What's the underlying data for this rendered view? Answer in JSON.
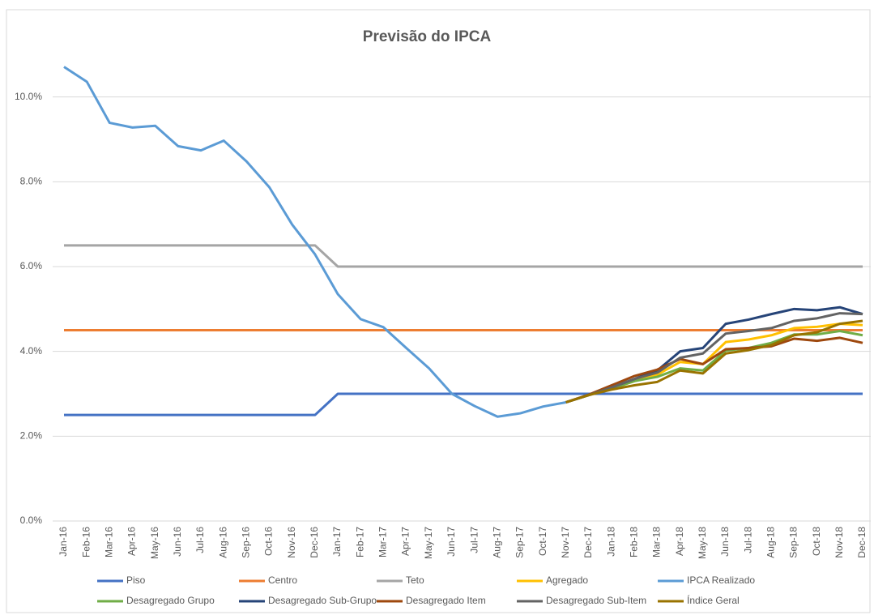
{
  "chart_data": {
    "type": "line",
    "title": "Previsão do IPCA",
    "categories": [
      "Jan-16",
      "Feb-16",
      "Mar-16",
      "Apr-16",
      "May-16",
      "Jun-16",
      "Jul-16",
      "Aug-16",
      "Sep-16",
      "Oct-16",
      "Nov-16",
      "Dec-16",
      "Jan-17",
      "Feb-17",
      "Mar-17",
      "Apr-17",
      "May-17",
      "Jun-17",
      "Jul-17",
      "Aug-17",
      "Sep-17",
      "Oct-17",
      "Nov-17",
      "Dec-17",
      "Jan-18",
      "Feb-18",
      "Mar-18",
      "Apr-18",
      "May-18",
      "Jun-18",
      "Jul-18",
      "Aug-18",
      "Sep-18",
      "Oct-18",
      "Nov-18",
      "Dec-18"
    ],
    "ylim": [
      0,
      12
    ],
    "yticks": [
      {
        "value": 0,
        "label": "0.0%"
      },
      {
        "value": 2,
        "label": "2.0%"
      },
      {
        "value": 4,
        "label": "4.0%"
      },
      {
        "value": 6,
        "label": "6.0%"
      },
      {
        "value": 8,
        "label": "8.0%"
      },
      {
        "value": 10,
        "label": "10.0%"
      }
    ],
    "grid": true,
    "legend": "bottom",
    "series": [
      {
        "name": "Piso",
        "color": "#4472c4",
        "values": [
          2.5,
          2.5,
          2.5,
          2.5,
          2.5,
          2.5,
          2.5,
          2.5,
          2.5,
          2.5,
          2.5,
          2.5,
          3,
          3,
          3,
          3,
          3,
          3,
          3,
          3,
          3,
          3,
          3,
          3,
          3,
          3,
          3,
          3,
          3,
          3,
          3,
          3,
          3,
          3,
          3,
          3
        ]
      },
      {
        "name": "Centro",
        "color": "#ed7d31",
        "values": [
          4.5,
          4.5,
          4.5,
          4.5,
          4.5,
          4.5,
          4.5,
          4.5,
          4.5,
          4.5,
          4.5,
          4.5,
          4.5,
          4.5,
          4.5,
          4.5,
          4.5,
          4.5,
          4.5,
          4.5,
          4.5,
          4.5,
          4.5,
          4.5,
          4.5,
          4.5,
          4.5,
          4.5,
          4.5,
          4.5,
          4.5,
          4.5,
          4.5,
          4.5,
          4.5,
          4.5
        ]
      },
      {
        "name": "Teto",
        "color": "#a5a5a5",
        "values": [
          6.5,
          6.5,
          6.5,
          6.5,
          6.5,
          6.5,
          6.5,
          6.5,
          6.5,
          6.5,
          6.5,
          6.5,
          6,
          6,
          6,
          6,
          6,
          6,
          6,
          6,
          6,
          6,
          6,
          6,
          6,
          6,
          6,
          6,
          6,
          6,
          6,
          6,
          6,
          6,
          6,
          6
        ]
      },
      {
        "name": "Agregado",
        "color": "#ffc000",
        "values": [
          null,
          null,
          null,
          null,
          null,
          null,
          null,
          null,
          null,
          null,
          null,
          null,
          null,
          null,
          null,
          null,
          null,
          null,
          null,
          null,
          null,
          null,
          2.8,
          2.97,
          3.12,
          3.3,
          3.45,
          3.75,
          3.7,
          4.22,
          4.28,
          4.38,
          4.55,
          4.58,
          4.65,
          4.62
        ]
      },
      {
        "name": "IPCA Realizado",
        "color": "#5b9bd5",
        "values": [
          10.71,
          10.36,
          9.39,
          9.28,
          9.32,
          8.84,
          8.74,
          8.97,
          8.48,
          7.87,
          6.99,
          6.29,
          5.35,
          4.76,
          4.57,
          4.08,
          3.6,
          3.0,
          2.71,
          2.46,
          2.54,
          2.7,
          2.8,
          null,
          null,
          null,
          null,
          null,
          null,
          null,
          null,
          null,
          null,
          null,
          null,
          null
        ]
      },
      {
        "name": "Desagregado Grupo",
        "color": "#70ad47",
        "values": [
          null,
          null,
          null,
          null,
          null,
          null,
          null,
          null,
          null,
          null,
          null,
          null,
          null,
          null,
          null,
          null,
          null,
          null,
          null,
          null,
          null,
          null,
          2.8,
          2.97,
          3.12,
          3.3,
          3.4,
          3.6,
          3.55,
          4.02,
          4.08,
          4.2,
          4.4,
          4.4,
          4.48,
          4.38
        ]
      },
      {
        "name": "Desagregado Sub-Grupo",
        "color": "#264478",
        "values": [
          null,
          null,
          null,
          null,
          null,
          null,
          null,
          null,
          null,
          null,
          null,
          null,
          null,
          null,
          null,
          null,
          null,
          null,
          null,
          null,
          null,
          null,
          2.8,
          2.97,
          3.15,
          3.35,
          3.55,
          4.0,
          4.08,
          4.65,
          4.75,
          4.88,
          5.0,
          4.97,
          5.04,
          4.88
        ]
      },
      {
        "name": "Desagregado Item",
        "color": "#9e480e",
        "values": [
          null,
          null,
          null,
          null,
          null,
          null,
          null,
          null,
          null,
          null,
          null,
          null,
          null,
          null,
          null,
          null,
          null,
          null,
          null,
          null,
          null,
          null,
          2.8,
          2.98,
          3.2,
          3.42,
          3.57,
          3.82,
          3.7,
          4.05,
          4.08,
          4.12,
          4.3,
          4.25,
          4.32,
          4.2
        ]
      },
      {
        "name": "Desagregado Sub-Item",
        "color": "#636363",
        "values": [
          null,
          null,
          null,
          null,
          null,
          null,
          null,
          null,
          null,
          null,
          null,
          null,
          null,
          null,
          null,
          null,
          null,
          null,
          null,
          null,
          null,
          null,
          2.8,
          2.97,
          3.15,
          3.35,
          3.5,
          3.85,
          3.95,
          4.42,
          4.48,
          4.55,
          4.72,
          4.78,
          4.9,
          4.88
        ]
      },
      {
        "name": "Índice Geral",
        "color": "#997300",
        "values": [
          null,
          null,
          null,
          null,
          null,
          null,
          null,
          null,
          null,
          null,
          null,
          null,
          null,
          null,
          null,
          null,
          null,
          null,
          null,
          null,
          null,
          null,
          2.8,
          2.97,
          3.1,
          3.2,
          3.28,
          3.55,
          3.48,
          3.95,
          4.03,
          4.15,
          4.38,
          4.45,
          4.65,
          4.72
        ]
      }
    ]
  }
}
